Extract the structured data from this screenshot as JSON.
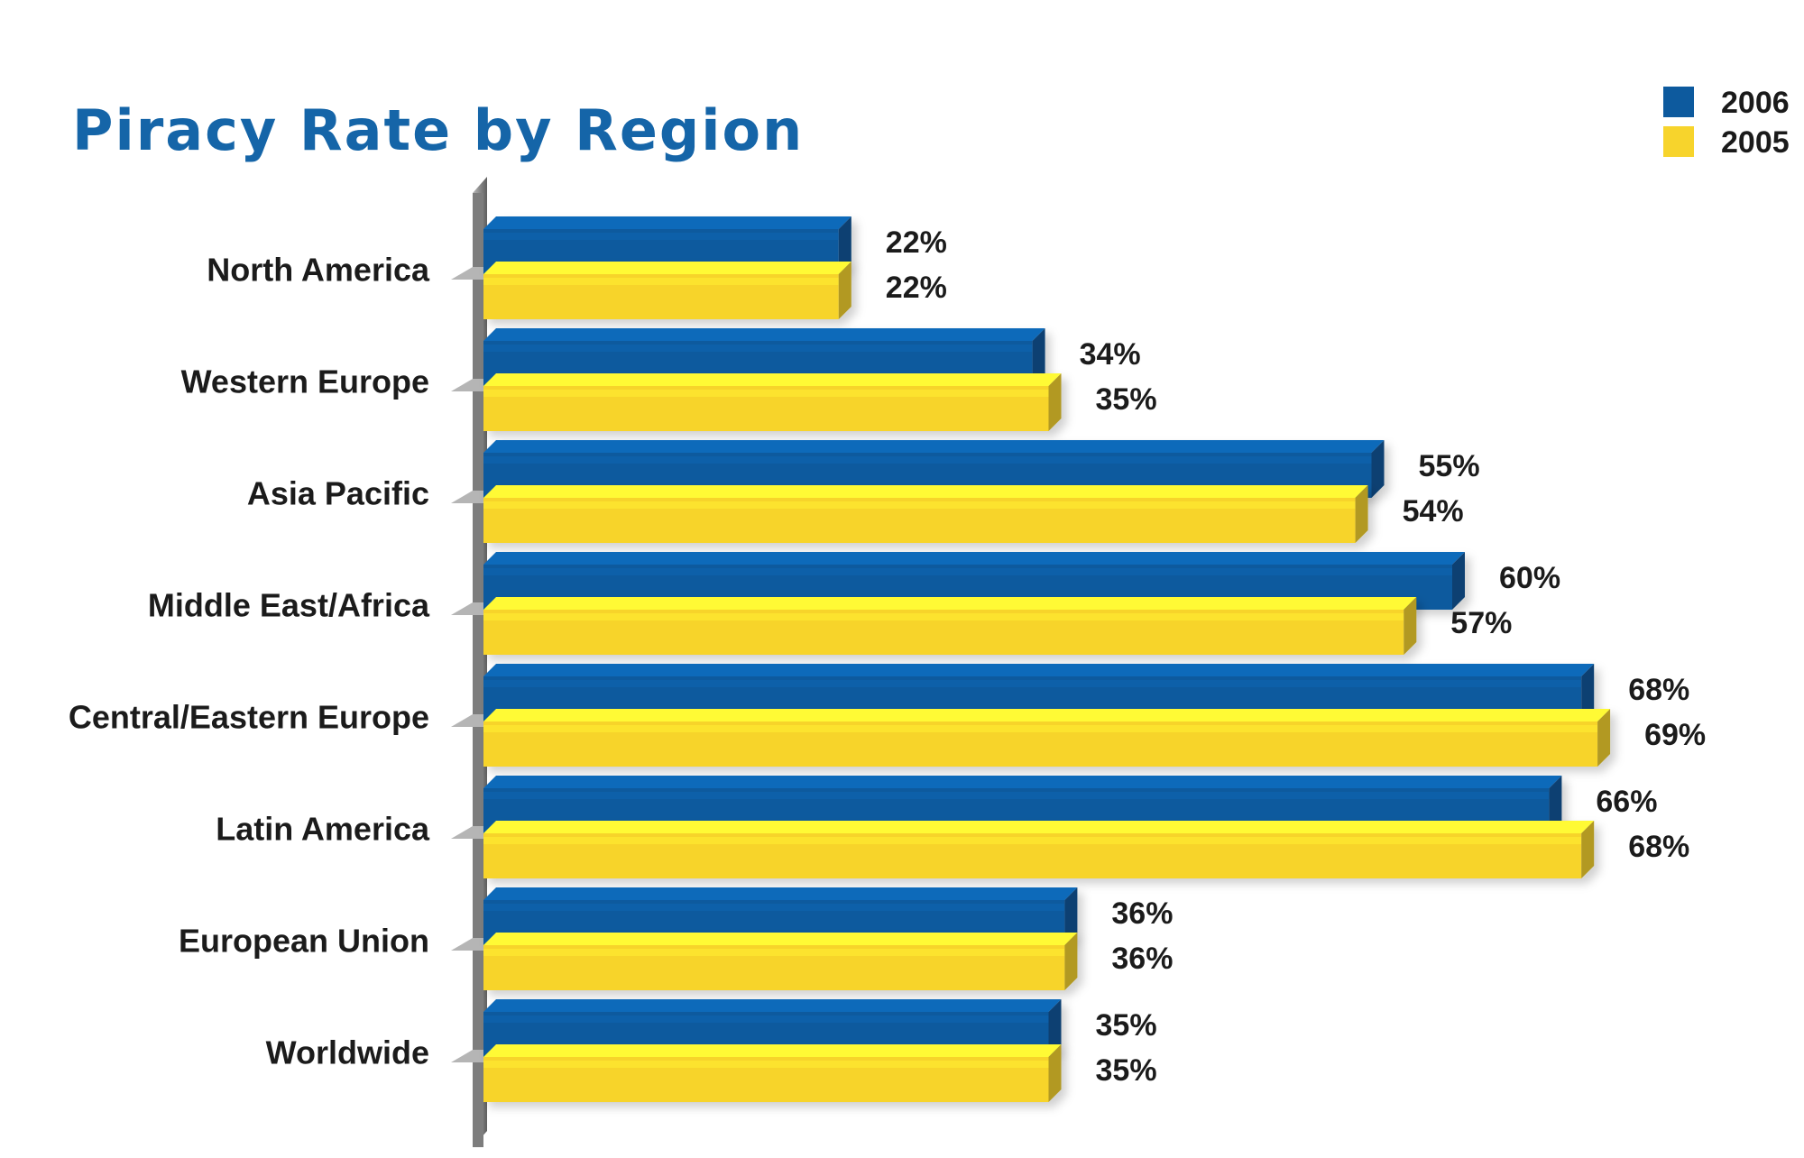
{
  "chart_data": {
    "type": "bar",
    "orientation": "horizontal",
    "title": "Piracy Rate by Region",
    "categories": [
      "North America",
      "Western Europe",
      "Asia Pacific",
      "Middle East/Africa",
      "Central/Eastern Europe",
      "Latin America",
      "European Union",
      "Worldwide"
    ],
    "series": [
      {
        "name": "2006",
        "color": "#0d5a9e",
        "values": [
          22,
          34,
          55,
          60,
          68,
          66,
          36,
          35
        ],
        "labels": [
          "22%",
          "34%",
          "55%",
          "60%",
          "68%",
          "66%",
          "36%",
          "35%"
        ]
      },
      {
        "name": "2005",
        "color": "#f7d42c",
        "values": [
          22,
          35,
          54,
          57,
          69,
          68,
          36,
          35
        ],
        "labels": [
          "22%",
          "35%",
          "54%",
          "57%",
          "69%",
          "68%",
          "36%",
          "35%"
        ]
      }
    ],
    "value_unit": "%",
    "xlim": [
      0,
      75
    ],
    "grid": false,
    "legend_position": "top-right",
    "style": "3d"
  }
}
